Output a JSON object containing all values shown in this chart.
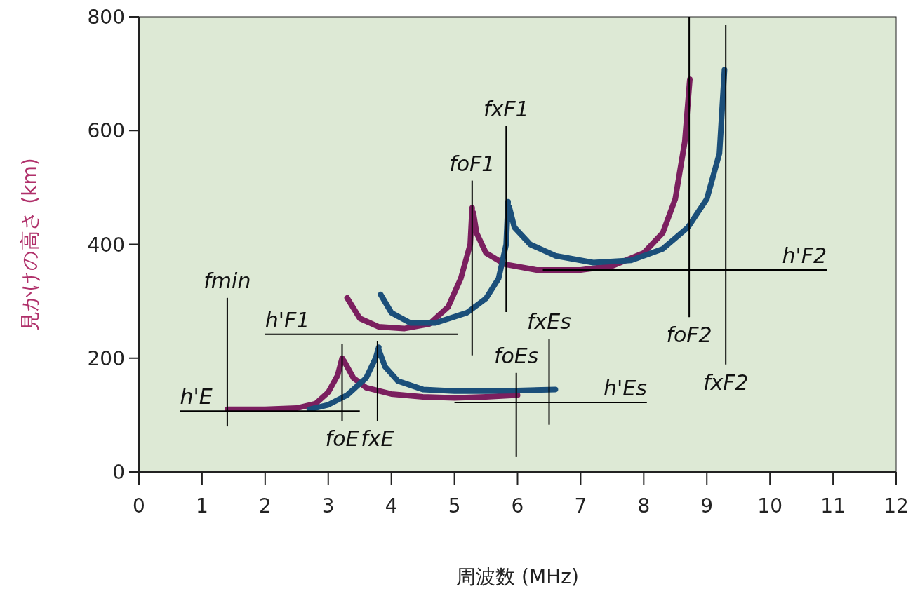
{
  "chart_data": {
    "type": "line",
    "xlabel": "周波数 (MHz)",
    "ylabel": "見かけの高さ (km)",
    "xlim": [
      0,
      12
    ],
    "ylim": [
      0,
      800
    ],
    "xticks": [
      0,
      1,
      2,
      3,
      4,
      5,
      6,
      7,
      8,
      9,
      10,
      11,
      12
    ],
    "yticks": [
      0,
      200,
      400,
      600,
      800
    ],
    "series": [
      {
        "color": "#7b1f5f",
        "x": [
          1.4,
          2,
          2.5,
          2.8,
          3.0,
          3.15,
          3.22,
          null,
          3.25,
          3.4,
          3.6,
          4,
          4.5,
          5,
          5.5,
          6.0,
          null,
          3.3,
          3.5,
          3.8,
          4.2,
          4.6,
          4.9,
          5.1,
          5.25,
          5.28,
          null,
          5.3,
          5.35,
          5.5,
          5.8,
          6.3,
          7,
          7.5,
          8,
          8.3,
          8.5,
          8.65,
          8.73
        ],
        "values": [
          110,
          110,
          112,
          120,
          140,
          170,
          200,
          null,
          195,
          165,
          148,
          137,
          132,
          130,
          132,
          135,
          null,
          306,
          270,
          255,
          252,
          260,
          290,
          340,
          400,
          464,
          null,
          455,
          420,
          385,
          365,
          355,
          355,
          362,
          385,
          420,
          480,
          580,
          690
        ]
      },
      {
        "color": "#1b4f7a",
        "x": [
          2.7,
          3.0,
          3.3,
          3.6,
          3.75,
          3.8,
          null,
          3.8,
          3.9,
          4.1,
          4.5,
          5,
          5.5,
          6,
          6.6,
          null,
          3.83,
          4.0,
          4.3,
          4.7,
          5.2,
          5.5,
          5.7,
          5.82,
          5.85,
          null,
          5.87,
          5.95,
          6.2,
          6.6,
          7.2,
          7.8,
          8.3,
          8.7,
          9.0,
          9.2,
          9.28
        ],
        "values": [
          110,
          118,
          135,
          165,
          200,
          219,
          null,
          215,
          185,
          160,
          145,
          142,
          142,
          143,
          145,
          null,
          312,
          280,
          262,
          262,
          280,
          305,
          340,
          400,
          475,
          null,
          465,
          430,
          400,
          380,
          368,
          372,
          392,
          430,
          480,
          560,
          707
        ]
      },
      {
        "color": "#000000",
        "x": [
          1.4,
          1.4
        ],
        "values": [
          80,
          306
        ]
      },
      {
        "color": "#000000",
        "x": [
          0.65,
          3.5
        ],
        "values": [
          107,
          107
        ]
      },
      {
        "color": "#000000",
        "x": [
          2.0,
          5.05
        ],
        "values": [
          242,
          242
        ]
      },
      {
        "color": "#000000",
        "x": [
          3.22,
          3.22
        ],
        "values": [
          90,
          225
        ]
      },
      {
        "color": "#000000",
        "x": [
          3.78,
          3.78
        ],
        "values": [
          90,
          230
        ]
      },
      {
        "color": "#000000",
        "x": [
          5.28,
          5.28
        ],
        "values": [
          205,
          512
        ]
      },
      {
        "color": "#000000",
        "x": [
          5.82,
          5.82
        ],
        "values": [
          281,
          608
        ]
      },
      {
        "color": "#000000",
        "x": [
          5.98,
          5.98
        ],
        "values": [
          26,
          174
        ]
      },
      {
        "color": "#000000",
        "x": [
          6.5,
          6.5
        ],
        "values": [
          83,
          234
        ]
      },
      {
        "color": "#000000",
        "x": [
          5.0,
          8.05
        ],
        "values": [
          122,
          122
        ]
      },
      {
        "color": "#000000",
        "x": [
          6.4,
          10.9
        ],
        "values": [
          355,
          355
        ]
      },
      {
        "color": "#000000",
        "x": [
          8.72,
          8.72
        ],
        "values": [
          272,
          800
        ]
      },
      {
        "color": "#000000",
        "x": [
          9.3,
          9.3
        ],
        "values": [
          189,
          786
        ]
      }
    ],
    "annotations": [
      {
        "text": "fmin",
        "x": 1.4,
        "y": 306
      },
      {
        "text": "h'E",
        "x": 0.65,
        "y": 107
      },
      {
        "text": "h'F1",
        "x": 2.0,
        "y": 242
      },
      {
        "text": "foE",
        "x": 3.22,
        "y": 90
      },
      {
        "text": "fxE",
        "x": 3.78,
        "y": 90
      },
      {
        "text": "foF1",
        "x": 5.28,
        "y": 512
      },
      {
        "text": "fxF1",
        "x": 5.82,
        "y": 608
      },
      {
        "text": "foEs",
        "x": 5.98,
        "y": 174
      },
      {
        "text": "fxEs",
        "x": 6.5,
        "y": 234
      },
      {
        "text": "h'Es",
        "x": 8.05,
        "y": 122
      },
      {
        "text": "h'F2",
        "x": 10.9,
        "y": 355
      },
      {
        "text": "foF2",
        "x": 8.72,
        "y": 272
      },
      {
        "text": "fxF2",
        "x": 9.3,
        "y": 189
      }
    ]
  }
}
